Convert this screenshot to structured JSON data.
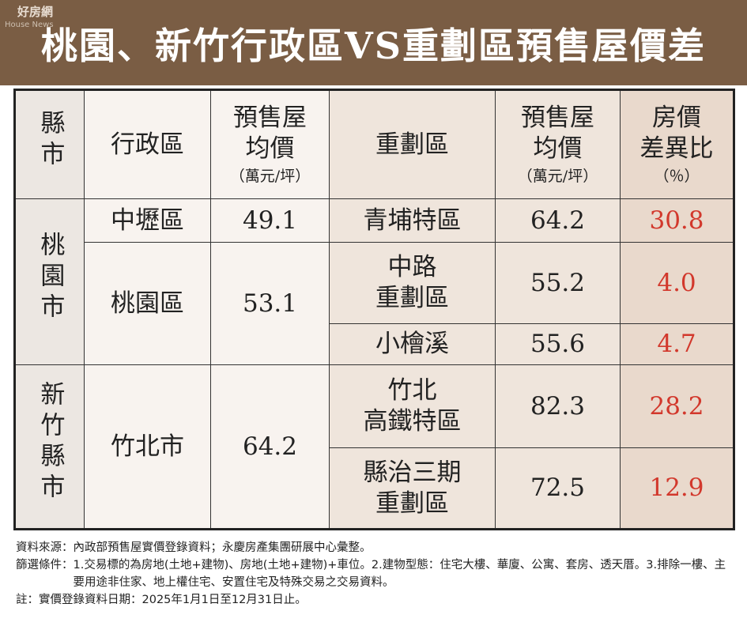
{
  "logo": "好房網",
  "logo_sub": "House News",
  "title": "桃園、新竹行政區VS重劃區預售屋價差",
  "table": {
    "header": [
      {
        "lines": [
          "縣市"
        ],
        "vertical": true
      },
      {
        "lines": [
          "行政區"
        ]
      },
      {
        "lines": [
          "預售屋",
          "均價"
        ],
        "unit": "（萬元/坪）"
      },
      {
        "lines": [
          "重劃區"
        ]
      },
      {
        "lines": [
          "預售屋",
          "均價"
        ],
        "unit": "（萬元/坪）"
      },
      {
        "lines": [
          "房價",
          "差異比"
        ],
        "unit": "（％）"
      }
    ],
    "groups": [
      {
        "city": "桃園市",
        "districts": [
          {
            "name": "中壢區",
            "price": "49.1",
            "zones": [
              {
                "name": [
                  "青埔特區"
                ],
                "price": "64.2",
                "diff": "30.8"
              }
            ]
          },
          {
            "name": "桃園區",
            "price": "53.1",
            "zones": [
              {
                "name": [
                  "中路",
                  "重劃區"
                ],
                "price": "55.2",
                "diff": "4.0"
              },
              {
                "name": [
                  "小檜溪"
                ],
                "price": "55.6",
                "diff": "4.7"
              }
            ]
          }
        ]
      },
      {
        "city": "新竹縣市",
        "districts": [
          {
            "name": "竹北市",
            "price": "64.2",
            "zones": [
              {
                "name": [
                  "竹北",
                  "高鐵特區"
                ],
                "price": "82.3",
                "diff": "28.2"
              },
              {
                "name": [
                  "縣治三期",
                  "重劃區"
                ],
                "price": "72.5",
                "diff": "12.9"
              }
            ]
          }
        ]
      }
    ]
  },
  "notes": [
    {
      "label": "資料來源：",
      "text": "內政部預售屋實價登錄資料；永慶房產集團研展中心彙整。"
    },
    {
      "label": "篩選條件：",
      "text": "1.交易標的為房地(土地+建物)、房地(土地+建物)+車位。2.建物型態：住宅大樓、華廈、公寓、套房、透天厝。3.排除一樓、主要用途非住家、地上權住宅、安置住宅及特殊交易之交易資料。"
    },
    {
      "label": "註：",
      "text": "實價登錄資料日期：2025年1月1日至12月31日止。"
    }
  ]
}
